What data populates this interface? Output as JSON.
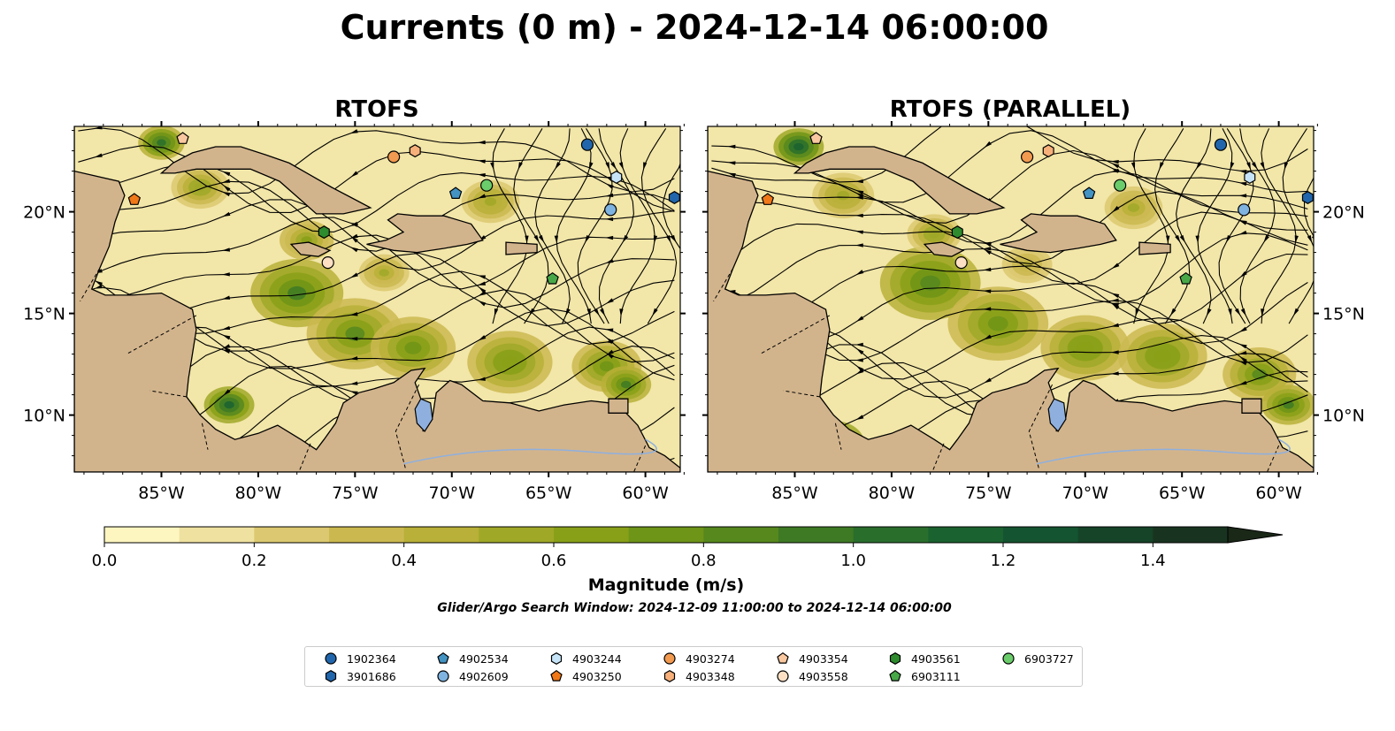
{
  "figure": {
    "title": "Currents (0 m) - 2024-12-14 06:00:00",
    "subtitle": "Glider/Argo Search Window: 2024-12-09 11:00:00 to 2024-12-14 06:00:00"
  },
  "panels": [
    {
      "title": "RTOFS"
    },
    {
      "title": "RTOFS (PARALLEL)"
    }
  ],
  "axes": {
    "lon_ticks": [
      "85°W",
      "80°W",
      "75°W",
      "70°W",
      "65°W",
      "60°W"
    ],
    "lon_values": [
      -85,
      -80,
      -75,
      -70,
      -65,
      -60
    ],
    "lat_ticks": [
      "20°N",
      "15°N",
      "10°N"
    ],
    "lat_values": [
      20,
      15,
      10
    ],
    "lon_range": [
      -89.5,
      -58.2
    ],
    "lat_range": [
      7.2,
      24.2
    ]
  },
  "colorbar": {
    "label": "Magnitude (m/s)",
    "tick_labels": [
      "0.0",
      "0.2",
      "0.4",
      "0.6",
      "0.8",
      "1.0",
      "1.2",
      "1.4"
    ],
    "tick_values": [
      0.0,
      0.2,
      0.4,
      0.6,
      0.8,
      1.0,
      1.2,
      1.4
    ],
    "range": [
      0,
      1.5
    ],
    "extend": "max",
    "colors": [
      "#fdf6c0",
      "#efe2a0",
      "#dcc870",
      "#cbb950",
      "#b8b038",
      "#a0a828",
      "#88a018",
      "#6e9418",
      "#56881e",
      "#3e7a24",
      "#2a6e2c",
      "#1a6230",
      "#145430",
      "#154428",
      "#183420",
      "#1a2818"
    ]
  },
  "land_color": "#d2b48c",
  "ocean_base": "#f2e6a8",
  "lake_color": "#8fb0de",
  "legend": {
    "items": [
      {
        "id": "1902364",
        "marker": "circle",
        "color": "#2166ac"
      },
      {
        "id": "3901686",
        "marker": "hexagon",
        "color": "#2166ac"
      },
      {
        "id": "4902534",
        "marker": "pentagon",
        "color": "#4393c3"
      },
      {
        "id": "4902609",
        "marker": "circle",
        "color": "#7fb3e0"
      },
      {
        "id": "4903244",
        "marker": "hexagon",
        "color": "#c6e4f7"
      },
      {
        "id": "4903250",
        "marker": "pentagon",
        "color": "#f07818"
      },
      {
        "id": "4903274",
        "marker": "circle",
        "color": "#f29a50"
      },
      {
        "id": "4903348",
        "marker": "hexagon",
        "color": "#f7b07a"
      },
      {
        "id": "4903354",
        "marker": "pentagon",
        "color": "#f9c8a0"
      },
      {
        "id": "4903558",
        "marker": "circle",
        "color": "#fde0c4"
      },
      {
        "id": "4903561",
        "marker": "hexagon",
        "color": "#2e8b2e"
      },
      {
        "id": "6903111",
        "marker": "pentagon",
        "color": "#48a848"
      },
      {
        "id": "6903727",
        "marker": "circle",
        "color": "#6acc6a"
      }
    ]
  },
  "markers": [
    {
      "id": "1902364",
      "lon": -63.0,
      "lat": 23.3
    },
    {
      "id": "3901686",
      "lon": -58.5,
      "lat": 20.7
    },
    {
      "id": "4902534",
      "lon": -69.8,
      "lat": 20.9
    },
    {
      "id": "4902609",
      "lon": -61.8,
      "lat": 20.1
    },
    {
      "id": "4903244",
      "lon": -61.5,
      "lat": 21.7
    },
    {
      "id": "4903250",
      "lon": -86.4,
      "lat": 20.6
    },
    {
      "id": "4903274",
      "lon": -73.0,
      "lat": 22.7
    },
    {
      "id": "4903348",
      "lon": -71.9,
      "lat": 23.0
    },
    {
      "id": "4903354",
      "lon": -83.9,
      "lat": 23.6
    },
    {
      "id": "4903558",
      "lon": -76.4,
      "lat": 17.5
    },
    {
      "id": "4903561",
      "lon": -76.6,
      "lat": 19.0
    },
    {
      "id": "6903111",
      "lon": -64.8,
      "lat": 16.7
    },
    {
      "id": "6903727",
      "lon": -68.2,
      "lat": 21.3
    }
  ]
}
